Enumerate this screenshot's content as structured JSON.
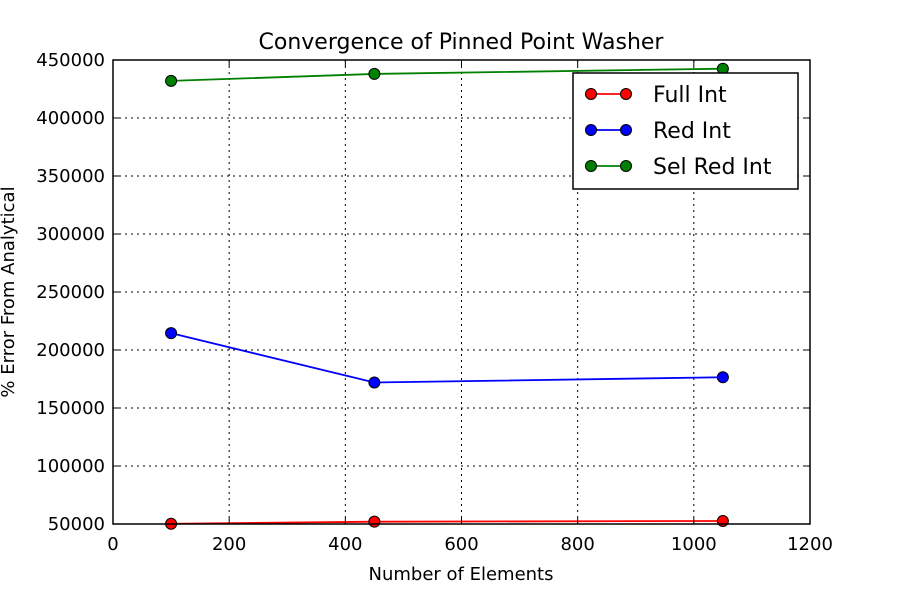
{
  "chart_data": {
    "type": "line",
    "title": "Convergence of Pinned Point Washer",
    "xlabel": "Number of Elements",
    "ylabel": "% Error From Analytical",
    "xlim": [
      0,
      1200
    ],
    "ylim": [
      50000,
      450000
    ],
    "xticks": [
      "0",
      "200",
      "400",
      "600",
      "800",
      "1000",
      "1200"
    ],
    "yticks": [
      "50000",
      "100000",
      "150000",
      "200000",
      "250000",
      "300000",
      "350000",
      "400000",
      "450000"
    ],
    "grid": true,
    "legend_position": "top-right",
    "series": [
      {
        "name": "Full Int",
        "color": "#ff0000",
        "x": [
          100,
          450,
          1050
        ],
        "y": [
          50200,
          52000,
          52600
        ]
      },
      {
        "name": "Red Int",
        "color": "#0000ff",
        "x": [
          100,
          450,
          1050
        ],
        "y": [
          214500,
          172000,
          176500
        ]
      },
      {
        "name": "Sel Red Int",
        "color": "#008000",
        "x": [
          100,
          450,
          1050
        ],
        "y": [
          432000,
          438000,
          442500
        ]
      }
    ]
  }
}
